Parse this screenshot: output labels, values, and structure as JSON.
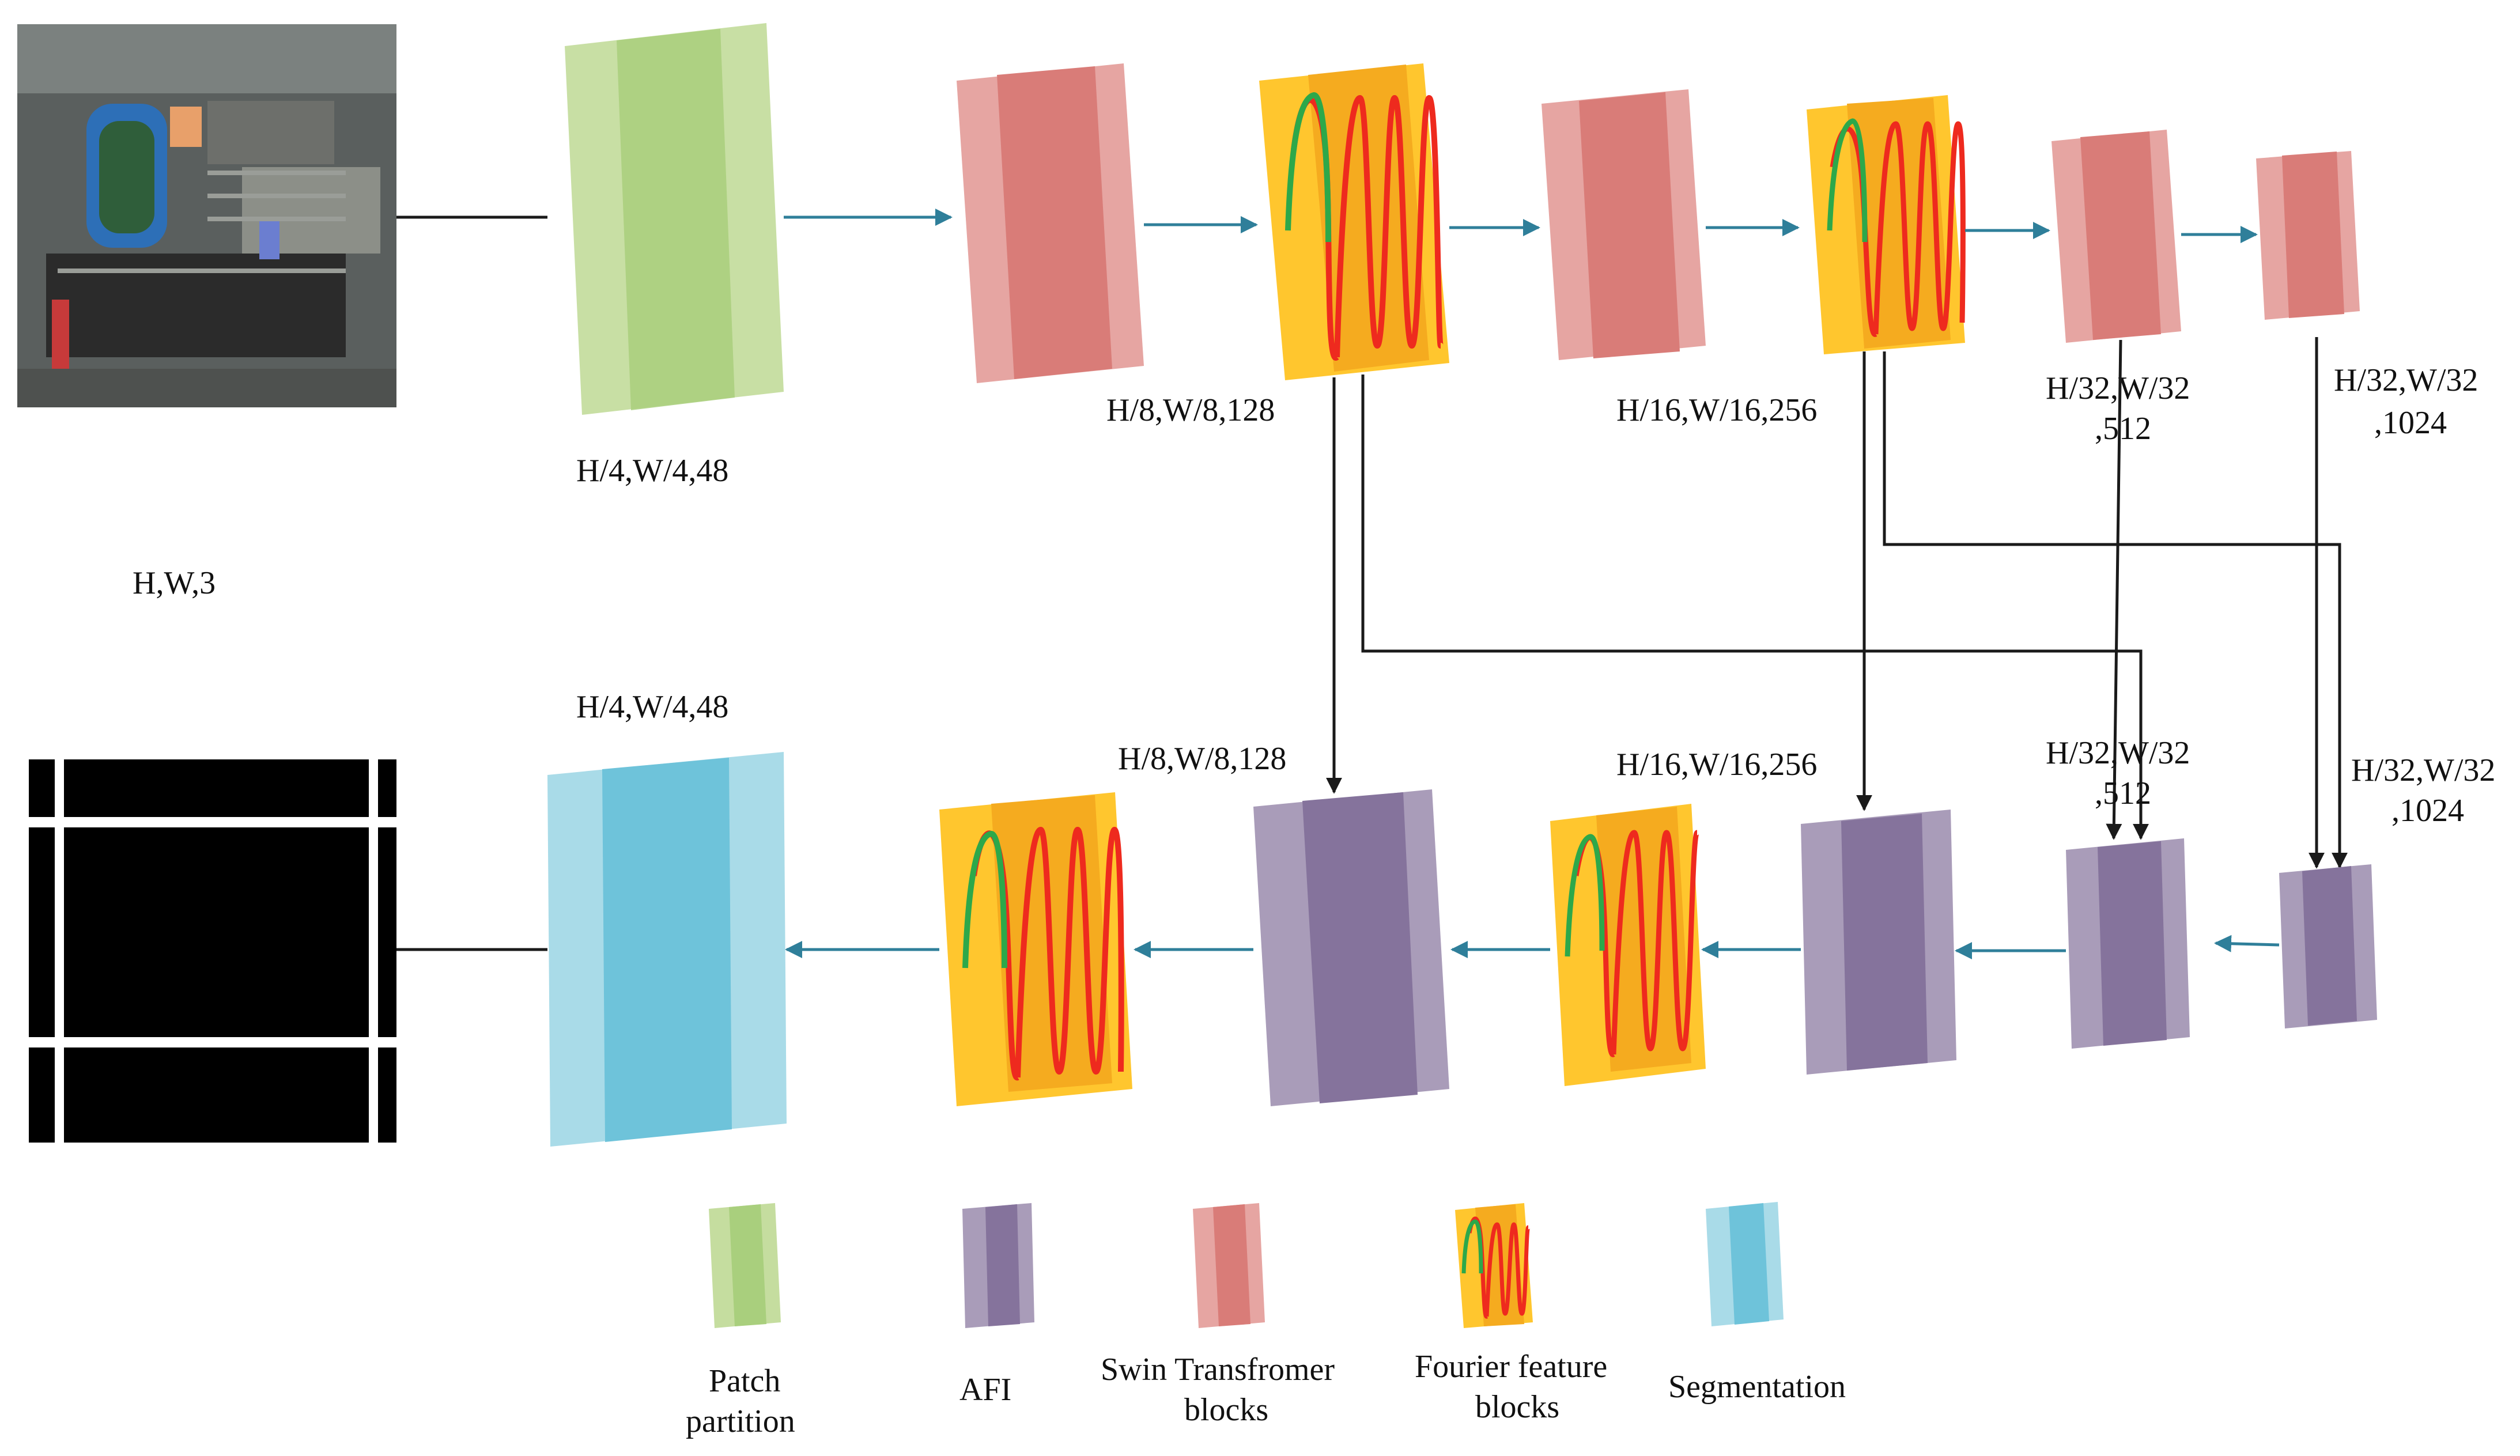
{
  "input": {
    "label": "H,W,3",
    "image_description_icon": "satellite-image"
  },
  "output": {
    "image_description_icon": "segmentation-mask"
  },
  "encoder": {
    "patch_label": "H/4,W/4,48",
    "stage1_label": "H/8,W/8,128",
    "stage2_label": "H/16,W/16,256",
    "stage3_label_line1": "H/32,W/32",
    "stage3_label_line2": ",512",
    "stage4_label_line1": "H/32,W/32",
    "stage4_label_line2": ",1024"
  },
  "decoder": {
    "seg_label": "H/4,W/4,48",
    "stage1_label": "H/8,W/8,128",
    "stage2_label": "H/16,W/16,256",
    "stage3_label_line1": "H/32,W/32",
    "stage3_label_line2": ",512",
    "stage4_label_line1": "H/32,W/32",
    "stage4_label_line2": ",1024"
  },
  "legend": {
    "patch_line1": "Patch",
    "patch_line2": "partition",
    "afi": "AFI",
    "swin_line1": "Swin Transfromer",
    "swin_line2": "blocks",
    "fourier_line1": "Fourier feature",
    "fourier_line2": "blocks",
    "segmentation": "Segmentation"
  },
  "colors": {
    "patch": "#c5dd9f",
    "patch_dark": "#a9cf7d",
    "swin": "#e6a5a2",
    "swin_dark": "#d97c78",
    "afi": "#a99cb9",
    "afi_dark": "#85739c",
    "seg": "#a9dbe8",
    "seg_dark": "#6ec3da",
    "fourier_bg": "#ffc62e",
    "fourier_bg2": "#f5ab1f",
    "wave_red": "#ee2a1e",
    "wave_green": "#2da84a",
    "arrow": "#2f7f9a",
    "line": "#1a1a1a"
  }
}
